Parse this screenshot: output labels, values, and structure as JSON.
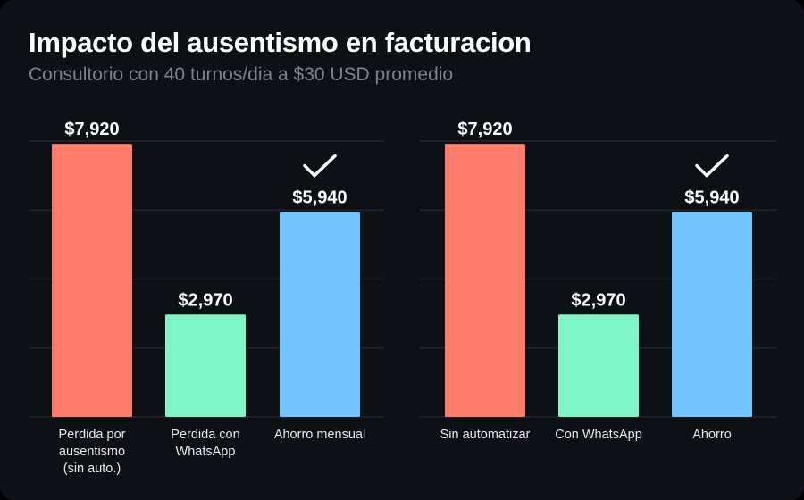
{
  "title": "Impacto del ausentismo en facturacion",
  "subtitle": "Consultorio con 40 turnos/dia a $30 USD promedio",
  "colors": {
    "background": "#0d1014",
    "loss": "#ff7b6b",
    "whatsapp": "#7ef5c4",
    "savings": "#72c4ff",
    "grid": "#23272d"
  },
  "chart_data": [
    {
      "type": "bar",
      "categories": [
        "Perdida por ausentismo (sin auto.)",
        "Perdida con WhatsApp",
        "Ahorro mensual"
      ],
      "category_lines": [
        [
          "Perdida por",
          "ausentismo",
          "(sin auto.)"
        ],
        [
          "Perdida con",
          "WhatsApp"
        ],
        [
          "Ahorro mensual"
        ]
      ],
      "values": [
        7920,
        2970,
        5940
      ],
      "data_labels": [
        "$7,920",
        "$2,970",
        "$5,940"
      ],
      "bar_colors": [
        "#ff7b6b",
        "#7ef5c4",
        "#72c4ff"
      ],
      "checkmark_on": "Ahorro mensual",
      "ylim": [
        0,
        8000
      ],
      "grid": true,
      "y_ticks_shown": false
    },
    {
      "type": "bar",
      "categories": [
        "Sin automatizar",
        "Con WhatsApp",
        "Ahorro"
      ],
      "category_lines": [
        [
          "Sin automatizar"
        ],
        [
          "Con WhatsApp"
        ],
        [
          "Ahorro"
        ]
      ],
      "values": [
        7920,
        2970,
        5940
      ],
      "data_labels": [
        "$7,920",
        "$2,970",
        "$5,940"
      ],
      "bar_colors": [
        "#ff7b6b",
        "#7ef5c4",
        "#72c4ff"
      ],
      "checkmark_on": "Ahorro",
      "ylim": [
        0,
        8000
      ],
      "grid": true,
      "y_ticks_shown": false
    }
  ]
}
